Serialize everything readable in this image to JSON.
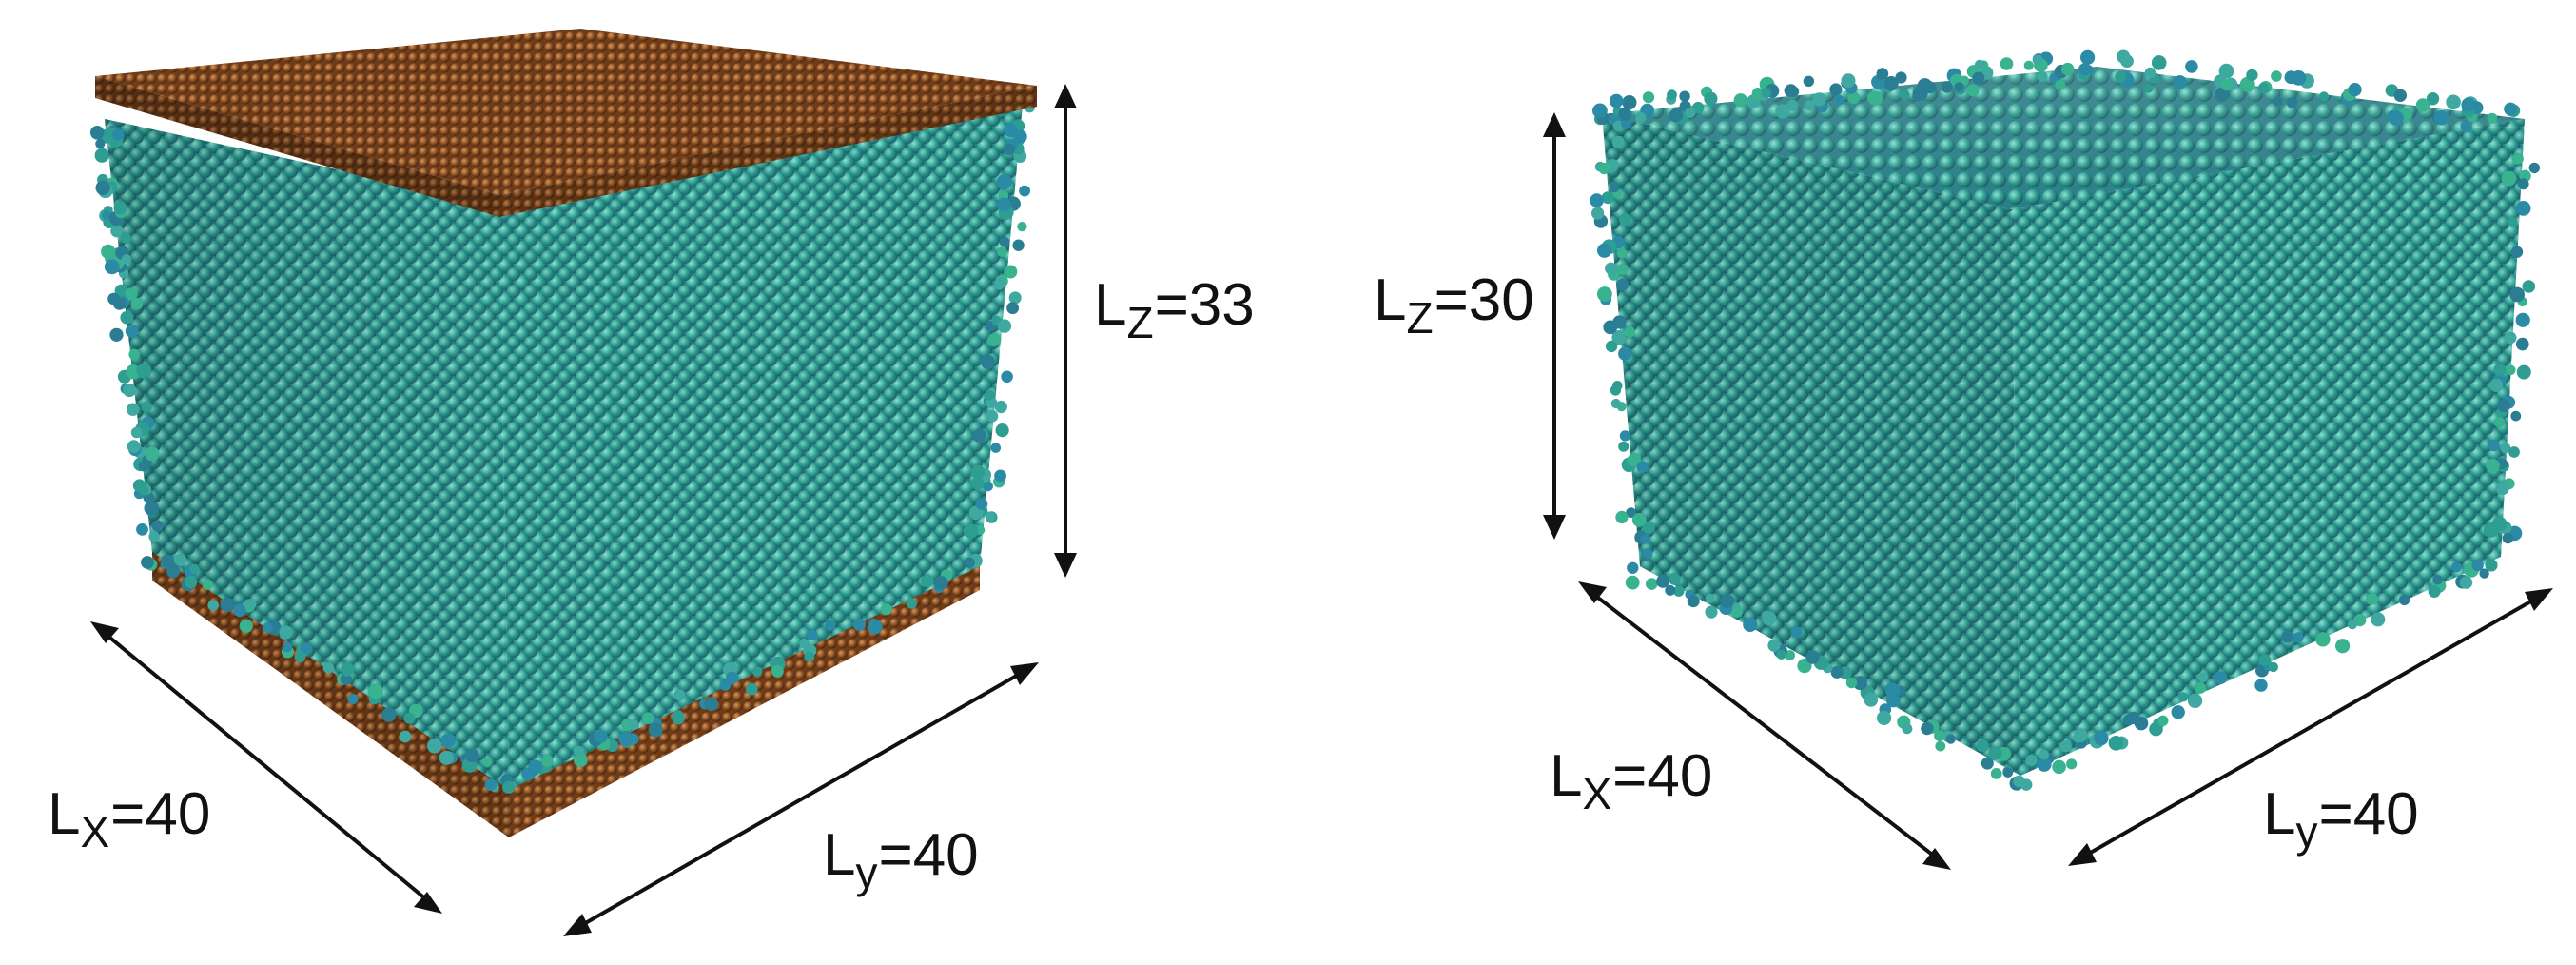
{
  "panels": [
    {
      "id": "left",
      "description_hidden": "",
      "has_walls": true,
      "wall_color": "#8a4f22",
      "particle_colors": [
        "#2f9e92",
        "#2b8aa6",
        "#39b28f",
        "#2a7d93",
        "#3fa8a0"
      ],
      "dims": {
        "lz": {
          "main": "L",
          "sub": "Z",
          "rest": "=33"
        },
        "lx": {
          "main": "L",
          "sub": "X",
          "rest": "=40"
        },
        "ly": {
          "main": "L",
          "sub": "y",
          "rest": "=40"
        }
      }
    },
    {
      "id": "right",
      "has_walls": false,
      "particle_colors": [
        "#2f9e92",
        "#2b8aa6",
        "#39b28f",
        "#2a7d93",
        "#3fa8a0"
      ],
      "dims": {
        "lz": {
          "main": "L",
          "sub": "Z",
          "rest": "=30"
        },
        "lx": {
          "main": "L",
          "sub": "X",
          "rest": "=40"
        },
        "ly": {
          "main": "L",
          "sub": "y",
          "rest": "=40"
        }
      }
    }
  ]
}
